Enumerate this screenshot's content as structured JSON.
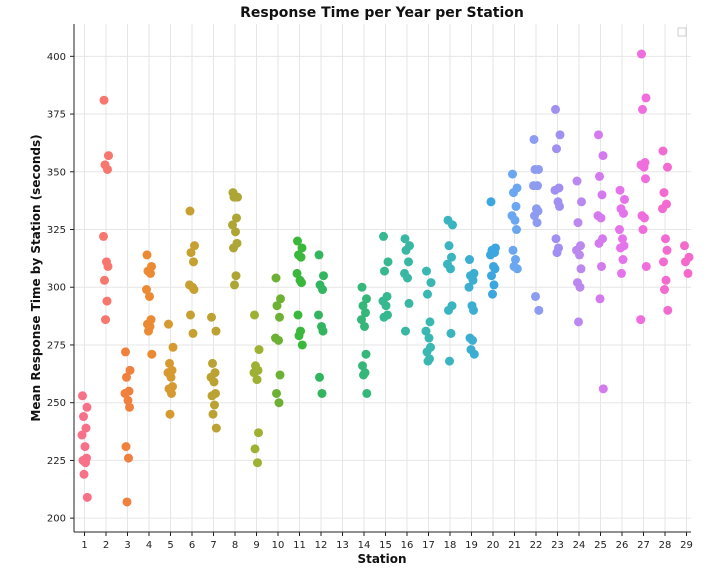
{
  "chart_data": {
    "type": "scatter",
    "title": "Response Time per Year per Station",
    "xlabel": "Station",
    "ylabel": "Mean Response Time by Station (seconds)",
    "categories": [
      "1",
      "2",
      "3",
      "4",
      "5",
      "6",
      "7",
      "8",
      "9",
      "10",
      "11",
      "12",
      "13",
      "14",
      "15",
      "16",
      "17",
      "18",
      "19",
      "20",
      "21",
      "22",
      "23",
      "24",
      "25",
      "26",
      "27",
      "28",
      "29"
    ],
    "ylim": [
      194,
      414
    ],
    "yticks": [
      200,
      225,
      250,
      275,
      300,
      325,
      350,
      375,
      400
    ],
    "grid": true,
    "legend": "top-right",
    "series": [
      {
        "category": "1",
        "color": "#f77189",
        "values": [
          253,
          248,
          244,
          239,
          236,
          231,
          226,
          225,
          224,
          219,
          209
        ]
      },
      {
        "category": "2",
        "color": "#f7766d",
        "values": [
          381,
          357,
          353,
          351,
          322,
          311,
          309,
          303,
          294,
          286
        ]
      },
      {
        "category": "3",
        "color": "#f0803d",
        "values": [
          272,
          264,
          261,
          255,
          254,
          251,
          248,
          231,
          226,
          207
        ]
      },
      {
        "category": "4",
        "color": "#eb8a32",
        "values": [
          314,
          309,
          307,
          306,
          299,
          296,
          286,
          284,
          283,
          281,
          271
        ]
      },
      {
        "category": "5",
        "color": "#d69a31",
        "values": [
          284,
          274,
          267,
          264,
          263,
          261,
          257,
          256,
          254,
          245
        ]
      },
      {
        "category": "6",
        "color": "#c7a032",
        "values": [
          333,
          318,
          315,
          311,
          301,
          300,
          299,
          288,
          280
        ]
      },
      {
        "category": "7",
        "color": "#bba233",
        "values": [
          287,
          281,
          267,
          263,
          261,
          259,
          254,
          253,
          249,
          245,
          239
        ]
      },
      {
        "category": "8",
        "color": "#ada634",
        "values": [
          341,
          339,
          339,
          330,
          327,
          324,
          319,
          317,
          305,
          301
        ]
      },
      {
        "category": "9",
        "color": "#9fb032",
        "values": [
          288,
          273,
          266,
          264,
          263,
          260,
          237,
          230,
          224
        ]
      },
      {
        "category": "10",
        "color": "#6cb133",
        "values": [
          304,
          295,
          292,
          287,
          278,
          277,
          262,
          254,
          250
        ]
      },
      {
        "category": "11",
        "color": "#3ab83c",
        "values": [
          320,
          317,
          314,
          313,
          306,
          303,
          302,
          288,
          281,
          279,
          275
        ]
      },
      {
        "category": "12",
        "color": "#33b560",
        "values": [
          314,
          305,
          301,
          299,
          288,
          283,
          281,
          261,
          254
        ]
      },
      {
        "category": "13",
        "color": "#33b570",
        "values": []
      },
      {
        "category": "14",
        "color": "#35b779",
        "values": [
          300,
          295,
          292,
          289,
          286,
          283,
          271,
          266,
          263,
          262,
          254
        ]
      },
      {
        "category": "15",
        "color": "#36b891",
        "values": [
          322,
          311,
          307,
          296,
          294,
          292,
          288,
          287
        ]
      },
      {
        "category": "16",
        "color": "#38b8a3",
        "values": [
          321,
          318,
          316,
          311,
          306,
          304,
          293,
          281
        ]
      },
      {
        "category": "17",
        "color": "#39b8b1",
        "values": [
          307,
          302,
          297,
          285,
          281,
          278,
          274,
          272,
          269,
          268
        ]
      },
      {
        "category": "18",
        "color": "#3ab5c0",
        "values": [
          329,
          327,
          318,
          313,
          310,
          308,
          292,
          290,
          280,
          268
        ]
      },
      {
        "category": "19",
        "color": "#3baed1",
        "values": [
          312,
          306,
          305,
          303,
          300,
          292,
          290,
          278,
          277,
          273,
          271
        ]
      },
      {
        "category": "20",
        "color": "#3ca6e0",
        "values": [
          337,
          317,
          316,
          315,
          314,
          309,
          308,
          305,
          301,
          297
        ]
      },
      {
        "category": "21",
        "color": "#6aa7f0",
        "values": [
          349,
          343,
          341,
          335,
          331,
          329,
          325,
          316,
          312,
          309,
          308
        ]
      },
      {
        "category": "22",
        "color": "#8d9bf0",
        "values": [
          364,
          351,
          351,
          344,
          344,
          334,
          333,
          331,
          328,
          296,
          290
        ]
      },
      {
        "category": "23",
        "color": "#a18ff2",
        "values": [
          377,
          366,
          360,
          343,
          342,
          337,
          335,
          321,
          317,
          315
        ]
      },
      {
        "category": "24",
        "color": "#ba88ee",
        "values": [
          346,
          337,
          328,
          318,
          316,
          314,
          308,
          302,
          300,
          285
        ]
      },
      {
        "category": "25",
        "color": "#d479ee",
        "values": [
          366,
          357,
          348,
          340,
          331,
          330,
          321,
          319,
          309,
          295,
          256
        ]
      },
      {
        "category": "26",
        "color": "#e573ec",
        "values": [
          342,
          338,
          334,
          332,
          325,
          321,
          318,
          317,
          312,
          306
        ]
      },
      {
        "category": "27",
        "color": "#f06ddd",
        "values": [
          401,
          382,
          377,
          354,
          353,
          352,
          347,
          331,
          330,
          325,
          309,
          286
        ]
      },
      {
        "category": "28",
        "color": "#f26bd0",
        "values": [
          359,
          352,
          341,
          336,
          334,
          321,
          316,
          311,
          303,
          299,
          290
        ]
      },
      {
        "category": "29",
        "color": "#f36acb",
        "values": [
          318,
          313,
          311,
          306
        ]
      }
    ]
  }
}
